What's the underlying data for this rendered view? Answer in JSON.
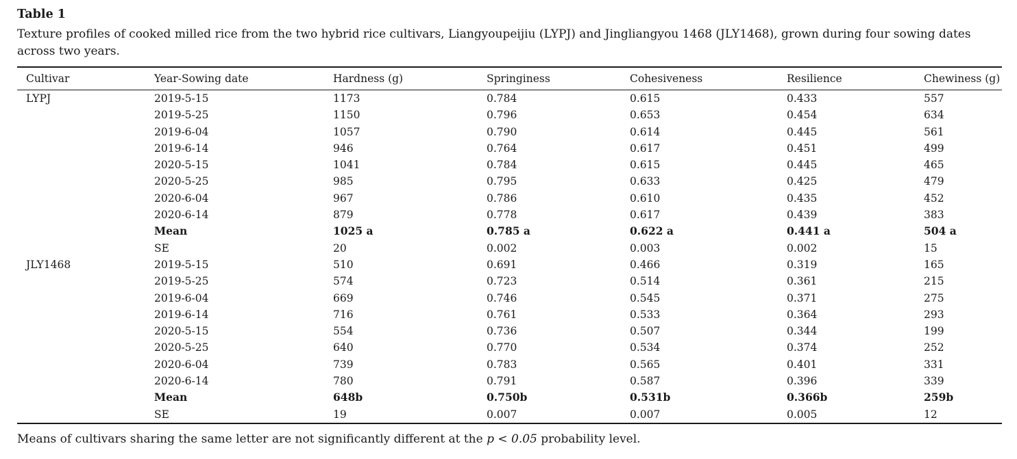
{
  "title": "Table 1",
  "caption": "Texture profiles of cooked milled rice from the two hybrid rice cultivars, Liangyoupeijiu (LYPJ) and Jingliangyou 1468 (JLY1468), grown during four sowing dates across two years.",
  "table": {
    "columns": [
      "Cultivar",
      "Year-Sowing date",
      "Hardness (g)",
      "Springiness",
      "Cohesiveness",
      "Resilience",
      "Chewiness (g)"
    ],
    "groups": [
      {
        "cultivar": "LYPJ",
        "rows": [
          {
            "label": "2019-5-15",
            "values": [
              "1173",
              "0.784",
              "0.615",
              "0.433",
              "557"
            ],
            "bold": false
          },
          {
            "label": "2019-5-25",
            "values": [
              "1150",
              "0.796",
              "0.653",
              "0.454",
              "634"
            ],
            "bold": false
          },
          {
            "label": "2019-6-04",
            "values": [
              "1057",
              "0.790",
              "0.614",
              "0.445",
              "561"
            ],
            "bold": false
          },
          {
            "label": "2019-6-14",
            "values": [
              "946",
              "0.764",
              "0.617",
              "0.451",
              "499"
            ],
            "bold": false
          },
          {
            "label": "2020-5-15",
            "values": [
              "1041",
              "0.784",
              "0.615",
              "0.445",
              "465"
            ],
            "bold": false
          },
          {
            "label": "2020-5-25",
            "values": [
              "985",
              "0.795",
              "0.633",
              "0.425",
              "479"
            ],
            "bold": false
          },
          {
            "label": "2020-6-04",
            "values": [
              "967",
              "0.786",
              "0.610",
              "0.435",
              "452"
            ],
            "bold": false
          },
          {
            "label": "2020-6-14",
            "values": [
              "879",
              "0.778",
              "0.617",
              "0.439",
              "383"
            ],
            "bold": false
          },
          {
            "label": "Mean",
            "values": [
              "1025 a",
              "0.785 a",
              "0.622 a",
              "0.441 a",
              "504 a"
            ],
            "bold": true
          },
          {
            "label": "SE",
            "values": [
              "20",
              "0.002",
              "0.003",
              "0.002",
              "15"
            ],
            "bold": false
          }
        ]
      },
      {
        "cultivar": "JLY1468",
        "rows": [
          {
            "label": "2019-5-15",
            "values": [
              "510",
              "0.691",
              "0.466",
              "0.319",
              "165"
            ],
            "bold": false
          },
          {
            "label": "2019-5-25",
            "values": [
              "574",
              "0.723",
              "0.514",
              "0.361",
              "215"
            ],
            "bold": false
          },
          {
            "label": "2019-6-04",
            "values": [
              "669",
              "0.746",
              "0.545",
              "0.371",
              "275"
            ],
            "bold": false
          },
          {
            "label": "2019-6-14",
            "values": [
              "716",
              "0.761",
              "0.533",
              "0.364",
              "293"
            ],
            "bold": false
          },
          {
            "label": "2020-5-15",
            "values": [
              "554",
              "0.736",
              "0.507",
              "0.344",
              "199"
            ],
            "bold": false
          },
          {
            "label": "2020-5-25",
            "values": [
              "640",
              "0.770",
              "0.534",
              "0.374",
              "252"
            ],
            "bold": false
          },
          {
            "label": "2020-6-04",
            "values": [
              "739",
              "0.783",
              "0.565",
              "0.401",
              "331"
            ],
            "bold": false
          },
          {
            "label": "2020-6-14",
            "values": [
              "780",
              "0.791",
              "0.587",
              "0.396",
              "339"
            ],
            "bold": false
          },
          {
            "label": "Mean",
            "values": [
              "648b",
              "0.750b",
              "0.531b",
              "0.366b",
              "259b"
            ],
            "bold": true
          },
          {
            "label": "SE",
            "values": [
              "19",
              "0.007",
              "0.007",
              "0.005",
              "12"
            ],
            "bold": false
          }
        ]
      }
    ]
  },
  "footnote": {
    "prefix": "Means of cultivars sharing the same letter are not significantly different at the ",
    "italic": "p < 0.05",
    "suffix": " probability level."
  }
}
